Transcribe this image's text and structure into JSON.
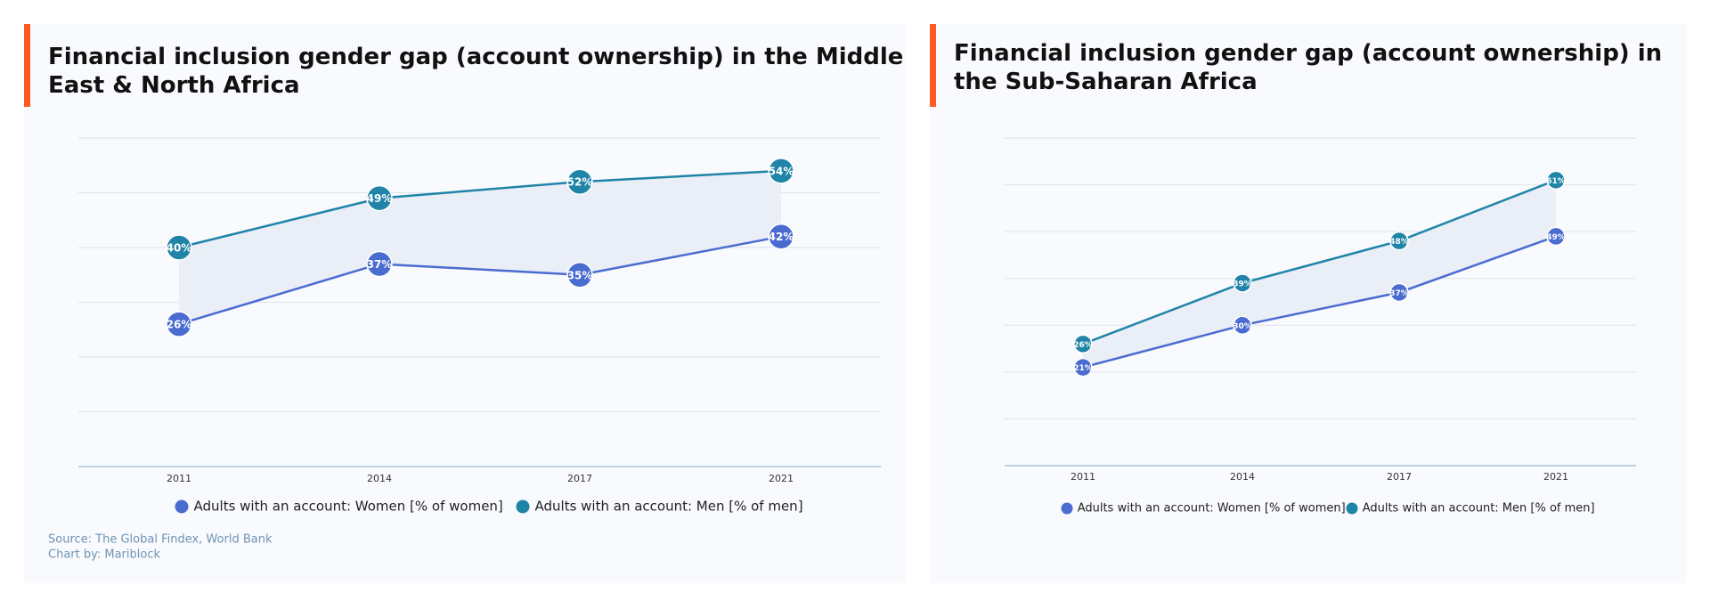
{
  "chart_data": [
    {
      "type": "line",
      "title": "Financial inclusion gender gap (account ownership) in the Middle East & North Africa",
      "title_lines": [
        "Financial inclusion gender gap (account ownership) in the Middle",
        "East & North Africa"
      ],
      "categories": [
        "2011",
        "2014",
        "2017",
        "2021"
      ],
      "series": [
        {
          "name": "Adults with an account: Women [% of women]",
          "color": "#4a6cd0",
          "values": [
            26,
            37,
            35,
            42
          ],
          "value_labels": [
            "26%",
            "37%",
            "35%",
            "42%"
          ]
        },
        {
          "name": "Adults with an account: Men [% of men]",
          "color": "#1f84a8",
          "values": [
            40,
            49,
            52,
            54
          ],
          "value_labels": [
            "40%",
            "49%",
            "52%",
            "54%"
          ]
        }
      ],
      "ylim": [
        0,
        60
      ],
      "yticks": [
        0,
        10,
        20,
        30,
        40,
        50,
        60
      ],
      "grid": true,
      "source": "Source: The Global Findex, World Bank",
      "credit": "Chart by: Mariblock"
    },
    {
      "type": "line",
      "title": "Financial inclusion gender gap (account ownership) in the Sub-Saharan Africa",
      "title_lines": [
        "Financial inclusion gender gap (account ownership) in",
        "the Sub-Saharan Africa"
      ],
      "categories": [
        "2011",
        "2014",
        "2017",
        "2021"
      ],
      "series": [
        {
          "name": "Adults with an account: Women [% of women]",
          "color": "#4a6cd0",
          "values": [
            21,
            30,
            37,
            49
          ],
          "value_labels": [
            "21%",
            "30%",
            "37%",
            "49%"
          ]
        },
        {
          "name": "Adults with an account: Men [% of men]",
          "color": "#1f84a8",
          "values": [
            26,
            39,
            48,
            61
          ],
          "value_labels": [
            "26%",
            "39%",
            "48%",
            "61%"
          ]
        }
      ],
      "ylim": [
        0,
        70
      ],
      "yticks": [
        0,
        10,
        20,
        30,
        40,
        50,
        60,
        70
      ],
      "grid": true
    }
  ]
}
